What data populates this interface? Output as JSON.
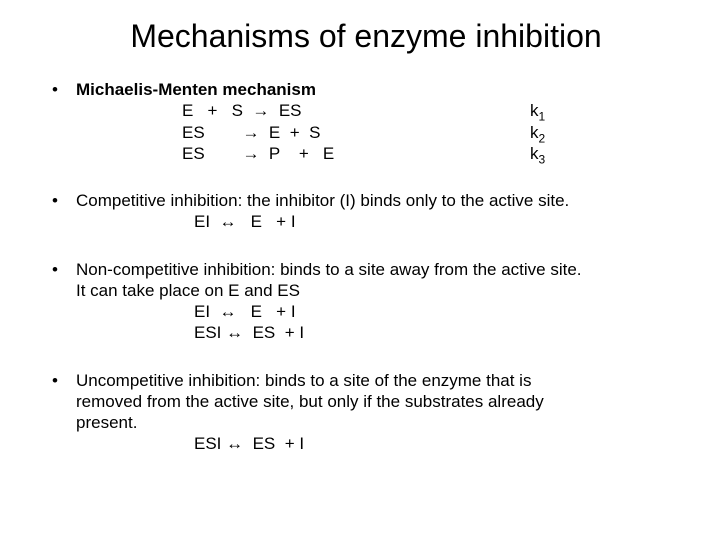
{
  "title": "Mechanisms of enzyme inhibition",
  "bullets": {
    "mm": {
      "heading": "Michaelis-Menten mechanism",
      "row1_eq": "E   +   S  →  ES",
      "row1_k": "k",
      "row1_ksub": "1",
      "row2_eq": "ES        →  E  +  S",
      "row2_k": "k",
      "row2_ksub": "2",
      "row3_eq": "ES        →  P    +   E",
      "row3_k": "k",
      "row3_ksub": "3"
    },
    "comp": {
      "text": "Competitive inhibition: the inhibitor (I) binds only to the active site.",
      "eq": "EI  ↔   E   + I"
    },
    "noncomp": {
      "line1": "Non-competitive inhibition: binds to a site away from the active site.",
      "line2": "It can take place on E and ES",
      "eq1": "EI  ↔   E   + I",
      "eq2": "ESI ↔  ES  + I"
    },
    "uncomp": {
      "line1": "Uncompetitive inhibition: binds to a site of the enzyme that is",
      "line2": "removed from the active site, but only if the substrates already",
      "line3": "present.",
      "eq": "ESI ↔  ES  + I"
    }
  }
}
